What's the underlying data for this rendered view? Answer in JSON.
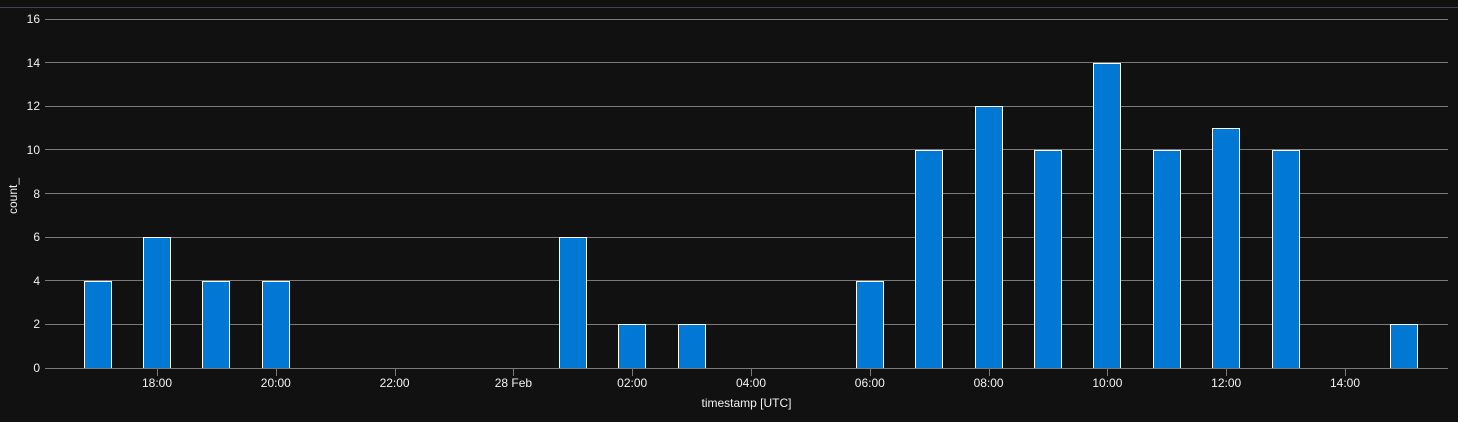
{
  "chart_data": {
    "type": "bar",
    "title": "",
    "xlabel": "timestamp [UTC]",
    "ylabel": "count_",
    "categories": [
      "17:00",
      "18:00",
      "19:00",
      "20:00",
      "21:00",
      "22:00",
      "23:00",
      "00:00",
      "01:00",
      "02:00",
      "03:00",
      "04:00",
      "05:00",
      "06:00",
      "07:00",
      "08:00",
      "09:00",
      "10:00",
      "11:00",
      "12:00",
      "13:00",
      "14:00",
      "15:00"
    ],
    "values": [
      4,
      6,
      4,
      4,
      0,
      0,
      0,
      0,
      6,
      2,
      2,
      0,
      0,
      4,
      10,
      12,
      10,
      14,
      10,
      11,
      10,
      0,
      2
    ],
    "x_tick_labels": [
      {
        "index": 1,
        "label": "18:00"
      },
      {
        "index": 3,
        "label": "20:00"
      },
      {
        "index": 5,
        "label": "22:00"
      },
      {
        "index": 7,
        "label": "28 Feb"
      },
      {
        "index": 9,
        "label": "02:00"
      },
      {
        "index": 11,
        "label": "04:00"
      },
      {
        "index": 13,
        "label": "06:00"
      },
      {
        "index": 15,
        "label": "08:00"
      },
      {
        "index": 17,
        "label": "10:00"
      },
      {
        "index": 19,
        "label": "12:00"
      },
      {
        "index": 21,
        "label": "14:00"
      }
    ],
    "y_ticks": [
      0,
      2,
      4,
      6,
      8,
      10,
      12,
      14,
      16
    ],
    "ylim": [
      0,
      16
    ],
    "grid": true,
    "legend": "none",
    "colors": {
      "background": "#111111",
      "bar_fill": "#0078d4",
      "bar_stroke": "#ffffff",
      "grid": "#7a7a7a",
      "tick": "#7a7a7a",
      "text": "#f2f2f2",
      "top_border": "#3b4651"
    }
  }
}
